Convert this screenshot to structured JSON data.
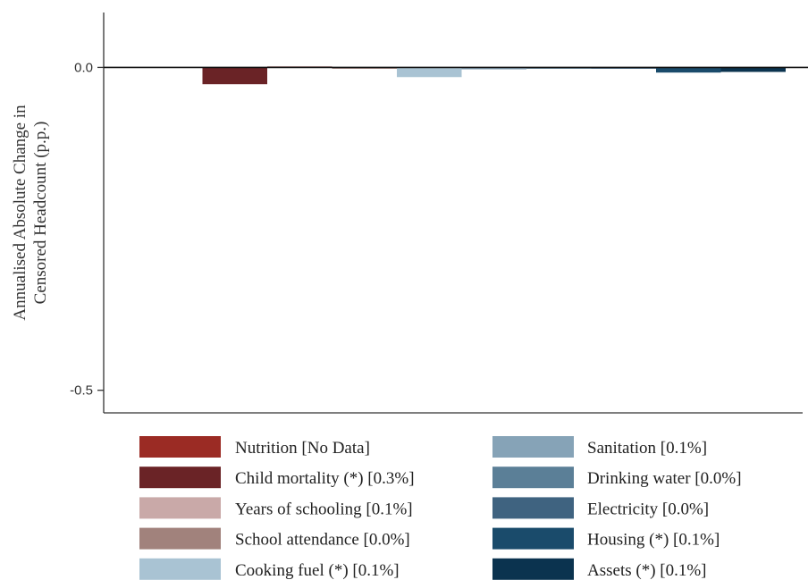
{
  "chart_data": {
    "type": "bar",
    "title": "",
    "xlabel": "",
    "ylabel_lines": [
      "Annualised Absolute Change in",
      "Censored Headcount (p.p.)"
    ],
    "ylim": [
      -0.535,
      0.085
    ],
    "yticks": [
      0.0,
      -0.5
    ],
    "ytick_labels": [
      "0.0",
      "-0.5"
    ],
    "grid": false,
    "legend_position": "bottom",
    "series": [
      {
        "name": "Nutrition [No Data]",
        "value": null,
        "color": "#9b2b24"
      },
      {
        "name": "Child mortality (*) [0.3%]",
        "value": -0.026,
        "color": "#6a2326"
      },
      {
        "name": "Years of schooling [0.1%]",
        "value": 0.002,
        "color": "#c9a9a8"
      },
      {
        "name": "School attendance [0.0%]",
        "value": -0.001,
        "color": "#a1827c"
      },
      {
        "name": "Cooking fuel (*) [0.1%]",
        "value": -0.015,
        "color": "#a9c3d3"
      },
      {
        "name": "Sanitation [0.1%]",
        "value": -0.003,
        "color": "#86a3b7"
      },
      {
        "name": "Drinking water [0.0%]",
        "value": -0.001,
        "color": "#5b7f97"
      },
      {
        "name": "Electricity [0.0%]",
        "value": -0.001,
        "color": "#3f6380"
      },
      {
        "name": "Housing (*) [0.1%]",
        "value": -0.008,
        "color": "#1a4b6b"
      },
      {
        "name": "Assets (*) [0.1%]",
        "value": -0.007,
        "color": "#0b334f"
      }
    ]
  }
}
